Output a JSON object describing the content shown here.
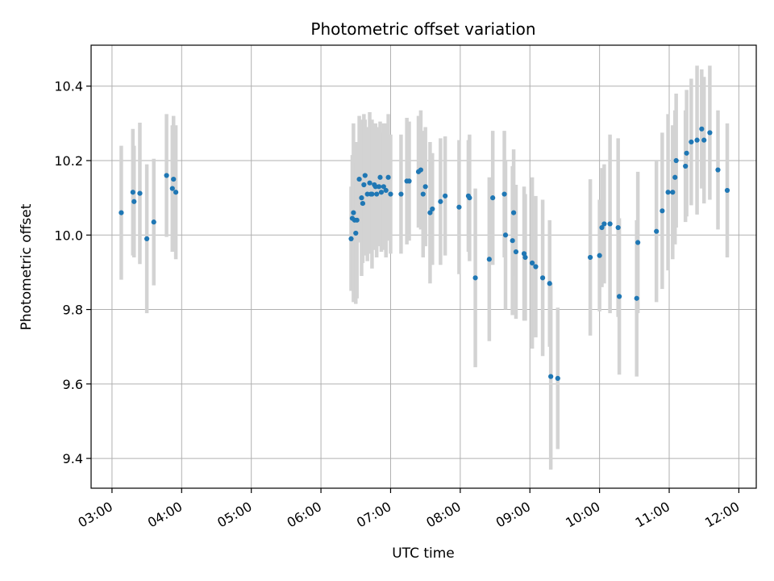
{
  "chart_data": {
    "type": "scatter",
    "title": "Photometric offset variation",
    "xlabel": "UTC time",
    "ylabel": "Photometric offset",
    "x_ticks": [
      "03:00",
      "04:00",
      "05:00",
      "06:00",
      "07:00",
      "08:00",
      "09:00",
      "10:00",
      "11:00",
      "12:00"
    ],
    "y_ticks": [
      "9.4",
      "9.6",
      "9.8",
      "10.0",
      "10.2",
      "10.4"
    ],
    "xlim": [
      "02:42",
      "12:15"
    ],
    "ylim": [
      9.32,
      10.51
    ],
    "grid": true,
    "colors": {
      "points": "#1f77b4",
      "errorbars": "#d3d3d3",
      "grid": "#b0b0b0"
    },
    "series": [
      {
        "x": [
          "03:08",
          "03:18",
          "03:19",
          "03:24",
          "03:30",
          "03:36",
          "03:47",
          "03:52",
          "03:53",
          "03:55",
          "06:26",
          "06:27",
          "06:28",
          "06:29",
          "06:30",
          "06:31",
          "06:33",
          "06:35",
          "06:36",
          "06:37",
          "06:38",
          "06:40",
          "06:42",
          "06:43",
          "06:44",
          "06:46",
          "06:47",
          "06:48",
          "06:50",
          "06:51",
          "06:52",
          "06:54",
          "06:56",
          "06:58",
          "07:00",
          "07:09",
          "07:14",
          "07:16",
          "07:24",
          "07:26",
          "07:28",
          "07:30",
          "07:34",
          "07:36",
          "07:43",
          "07:47",
          "07:59",
          "08:07",
          "08:08",
          "08:13",
          "08:25",
          "08:28",
          "08:38",
          "08:39",
          "08:45",
          "08:46",
          "08:48",
          "08:55",
          "08:56",
          "09:02",
          "09:05",
          "09:11",
          "09:17",
          "09:18",
          "09:24",
          "09:52",
          "10:00",
          "10:02",
          "10:04",
          "10:09",
          "10:16",
          "10:17",
          "10:32",
          "10:33",
          "10:49",
          "10:54",
          "10:59",
          "11:03",
          "11:05",
          "11:06",
          "11:14",
          "11:15",
          "11:19",
          "11:24",
          "11:28",
          "11:30",
          "11:35",
          "11:42",
          "11:50"
        ],
        "y": [
          10.06,
          10.115,
          10.09,
          10.112,
          9.99,
          10.035,
          10.16,
          10.125,
          10.15,
          10.115,
          9.99,
          10.045,
          10.06,
          10.04,
          10.005,
          10.04,
          10.15,
          10.1,
          10.085,
          10.135,
          10.16,
          10.11,
          10.14,
          10.11,
          10.11,
          10.135,
          10.13,
          10.11,
          10.13,
          10.155,
          10.115,
          10.13,
          10.12,
          10.155,
          10.11,
          10.11,
          10.145,
          10.145,
          10.17,
          10.175,
          10.11,
          10.13,
          10.06,
          10.07,
          10.09,
          10.105,
          10.075,
          10.105,
          10.1,
          9.885,
          9.935,
          10.1,
          10.11,
          10.0,
          9.985,
          10.06,
          9.955,
          9.95,
          9.94,
          9.925,
          9.915,
          9.885,
          9.87,
          9.62,
          9.615,
          9.94,
          9.945,
          10.02,
          10.03,
          10.03,
          10.02,
          9.835,
          9.83,
          9.98,
          10.01,
          10.065,
          10.115,
          10.115,
          10.155,
          10.2,
          10.185,
          10.22,
          10.25,
          10.255,
          10.285,
          10.255,
          10.275,
          10.175,
          10.12
        ],
        "err": [
          0.18,
          0.17,
          0.15,
          0.19,
          0.2,
          0.17,
          0.165,
          0.17,
          0.17,
          0.18,
          0.14,
          0.17,
          0.24,
          0.21,
          0.19,
          0.21,
          0.17,
          0.21,
          0.16,
          0.19,
          0.15,
          0.18,
          0.19,
          0.16,
          0.2,
          0.16,
          0.17,
          0.17,
          0.16,
          0.15,
          0.16,
          0.17,
          0.18,
          0.17,
          0.16,
          0.16,
          0.17,
          0.16,
          0.15,
          0.16,
          0.17,
          0.16,
          0.19,
          0.15,
          0.17,
          0.16,
          0.18,
          0.15,
          0.17,
          0.24,
          0.22,
          0.18,
          0.17,
          0.2,
          0.2,
          0.17,
          0.18,
          0.18,
          0.17,
          0.23,
          0.19,
          0.21,
          0.17,
          0.25,
          0.19,
          0.21,
          0.15,
          0.16,
          0.16,
          0.24,
          0.24,
          0.21,
          0.21,
          0.19,
          0.19,
          0.21,
          0.21,
          0.18,
          0.18,
          0.18,
          0.15,
          0.17,
          0.17,
          0.2,
          0.16,
          0.17,
          0.18,
          0.16,
          0.18
        ]
      }
    ]
  }
}
